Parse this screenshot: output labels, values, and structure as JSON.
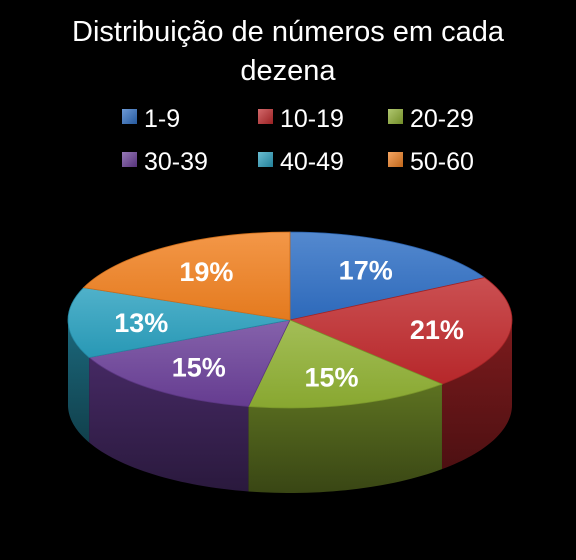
{
  "chart_data": {
    "type": "pie",
    "title_lines": [
      "Distribuição de números em cada",
      "dezena"
    ],
    "legend_position": "top",
    "categories": [
      "1-9",
      "10-19",
      "20-29",
      "30-39",
      "40-49",
      "50-60"
    ],
    "values": [
      17,
      21,
      15,
      15,
      13,
      19
    ],
    "labels": [
      "17%",
      "21%",
      "15%",
      "15%",
      "13%",
      "19%"
    ],
    "colors": [
      "#2f6fc4",
      "#c0292c",
      "#8fb032",
      "#6a3f98",
      "#2aa0be",
      "#f08020"
    ]
  }
}
